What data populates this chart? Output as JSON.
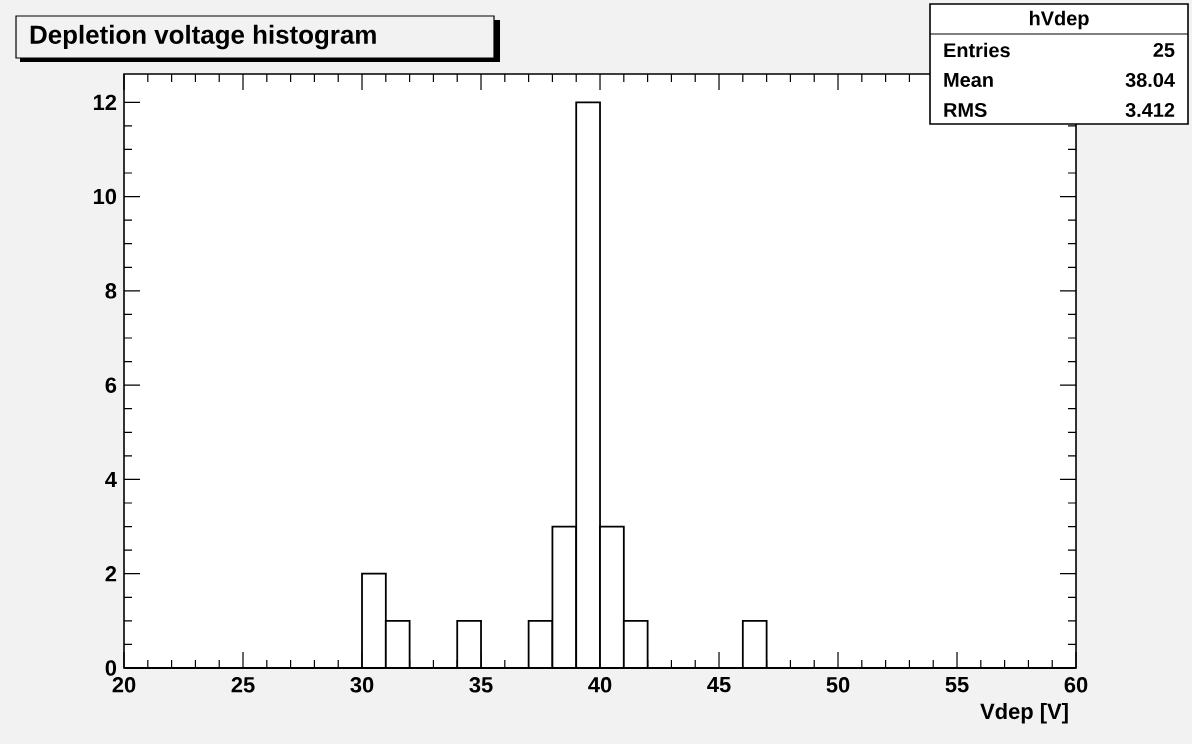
{
  "chart_data": {
    "type": "histogram",
    "title": "Depletion voltage histogram",
    "xlabel": "Vdep [V]",
    "bins": [
      20,
      21,
      22,
      23,
      24,
      25,
      26,
      27,
      28,
      29,
      30,
      31,
      32,
      33,
      34,
      35,
      36,
      37,
      38,
      39,
      40,
      41,
      42,
      43,
      44,
      45,
      46,
      47,
      48,
      49,
      50,
      51,
      52,
      53,
      54,
      55,
      56,
      57,
      58,
      59,
      60
    ],
    "values": [
      0,
      0,
      0,
      0,
      0,
      0,
      0,
      0,
      0,
      0,
      2,
      1,
      0,
      0,
      1,
      0,
      0,
      1,
      3,
      12,
      3,
      1,
      0,
      0,
      0,
      0,
      1,
      0,
      0,
      0,
      0,
      0,
      0,
      0,
      0,
      0,
      0,
      0,
      0,
      0
    ],
    "color": "#000000",
    "xlim": [
      20,
      60
    ],
    "ylim": [
      0,
      12.6
    ],
    "xticks": [
      20,
      25,
      30,
      35,
      40,
      45,
      50,
      55,
      60
    ],
    "yticks": [
      0,
      2,
      4,
      6,
      8,
      10,
      12
    ],
    "annotations": [
      "hVdep",
      "Entries",
      "25",
      "Mean",
      "38.04",
      "RMS",
      "3.412"
    ]
  }
}
